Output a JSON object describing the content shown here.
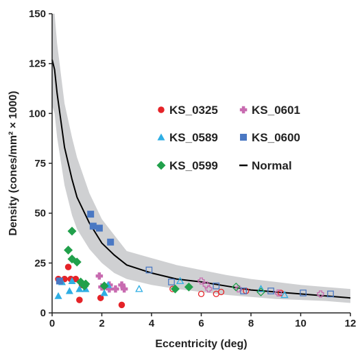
{
  "chart_data": {
    "type": "scatter",
    "title": "",
    "xlabel": "Eccentricity (deg)",
    "ylabel": "Density (cones/mm² × 1000)",
    "xlim": [
      0,
      12
    ],
    "ylim": [
      0,
      150
    ],
    "x_ticks": [
      "0",
      "2",
      "4",
      "6",
      "8",
      "10",
      "12"
    ],
    "y_ticks": [
      "0",
      "25",
      "50",
      "75",
      "100",
      "125",
      "150"
    ],
    "grid": false,
    "legend_position": "center-right",
    "normal": {
      "name": "Normal",
      "color": "#000000",
      "band_color": "#cfd0d2",
      "x": [
        0,
        0.1,
        0.2,
        0.5,
        0.8,
        1.0,
        1.5,
        2.0,
        2.5,
        3.0,
        4.0,
        5.0,
        6.0,
        7.0,
        8.0,
        9.0,
        10.0,
        11.0,
        12.0
      ],
      "y": [
        127,
        122,
        110,
        83,
        67,
        58,
        45,
        35,
        29,
        24,
        20,
        17,
        15.5,
        13.5,
        11.5,
        10.5,
        9.5,
        8.5,
        7.5
      ],
      "upper": [
        150,
        150,
        135,
        105,
        88,
        78,
        60,
        47,
        39,
        31,
        27.5,
        24,
        21.5,
        19,
        17,
        15.5,
        14,
        13,
        12
      ],
      "lower": [
        104,
        100,
        88,
        64,
        49,
        42,
        32,
        25,
        20,
        17,
        14,
        12,
        10.5,
        9,
        8,
        7,
        6.5,
        6,
        5
      ]
    },
    "series": [
      {
        "name": "KS_0325",
        "marker": "circle",
        "color": "#e52328",
        "points": [
          [
            0.25,
            17
          ],
          [
            0.5,
            17
          ],
          [
            0.65,
            23
          ],
          [
            0.75,
            17
          ],
          [
            0.95,
            17
          ],
          [
            1.1,
            6.5
          ],
          [
            1.2,
            14
          ],
          [
            1.95,
            7.5
          ],
          [
            2.8,
            4
          ]
        ],
        "open_points": [
          [
            4.85,
            12
          ],
          [
            6.0,
            9.5
          ],
          [
            6.6,
            9.5
          ],
          [
            6.8,
            10.5
          ],
          [
            7.8,
            11
          ],
          [
            9.2,
            10
          ]
        ]
      },
      {
        "name": "KS_0601",
        "marker": "plus",
        "color": "#c86bb0",
        "points": [
          [
            1.9,
            18.5
          ],
          [
            2.0,
            13
          ],
          [
            2.3,
            14
          ],
          [
            2.3,
            12
          ],
          [
            2.55,
            12
          ],
          [
            2.8,
            14
          ],
          [
            2.9,
            12
          ]
        ],
        "open_points": [
          [
            6.0,
            16
          ],
          [
            6.2,
            14
          ],
          [
            6.3,
            12
          ],
          [
            7.5,
            12
          ],
          [
            9.1,
            10
          ],
          [
            10.8,
            9.5
          ]
        ]
      },
      {
        "name": "KS_0589",
        "marker": "triangle",
        "color": "#2eaee4",
        "points": [
          [
            0.25,
            8.5
          ],
          [
            0.4,
            15.5
          ],
          [
            0.7,
            11
          ],
          [
            0.8,
            16
          ],
          [
            1.1,
            12
          ],
          [
            1.35,
            12
          ],
          [
            2.1,
            10
          ],
          [
            2.25,
            14
          ]
        ],
        "open_points": [
          [
            3.5,
            12
          ],
          [
            5.15,
            16
          ],
          [
            8.4,
            12
          ],
          [
            9.35,
            9
          ]
        ]
      },
      {
        "name": "KS_0600",
        "marker": "square",
        "color": "#4a78c3",
        "points": [
          [
            0.3,
            16
          ],
          [
            1.55,
            49.5
          ],
          [
            1.65,
            43.5
          ],
          [
            1.9,
            42.5
          ],
          [
            2.35,
            35.5
          ]
        ],
        "open_points": [
          [
            3.9,
            21.5
          ],
          [
            4.8,
            15.5
          ],
          [
            6.6,
            13.5
          ],
          [
            7.7,
            11
          ],
          [
            8.8,
            11
          ],
          [
            10.1,
            10
          ],
          [
            11.2,
            9.5
          ]
        ]
      },
      {
        "name": "KS_0599",
        "marker": "diamond",
        "color": "#21a04b",
        "points": [
          [
            0.65,
            31.5
          ],
          [
            0.8,
            41
          ],
          [
            0.8,
            27
          ],
          [
            1.0,
            25.5
          ],
          [
            1.15,
            15.5
          ],
          [
            1.3,
            13.5
          ],
          [
            1.35,
            14.5
          ],
          [
            2.1,
            13.5
          ],
          [
            4.95,
            12
          ],
          [
            5.5,
            13
          ]
        ],
        "open_points": [
          [
            7.4,
            13
          ],
          [
            8.4,
            10.5
          ]
        ]
      }
    ]
  }
}
